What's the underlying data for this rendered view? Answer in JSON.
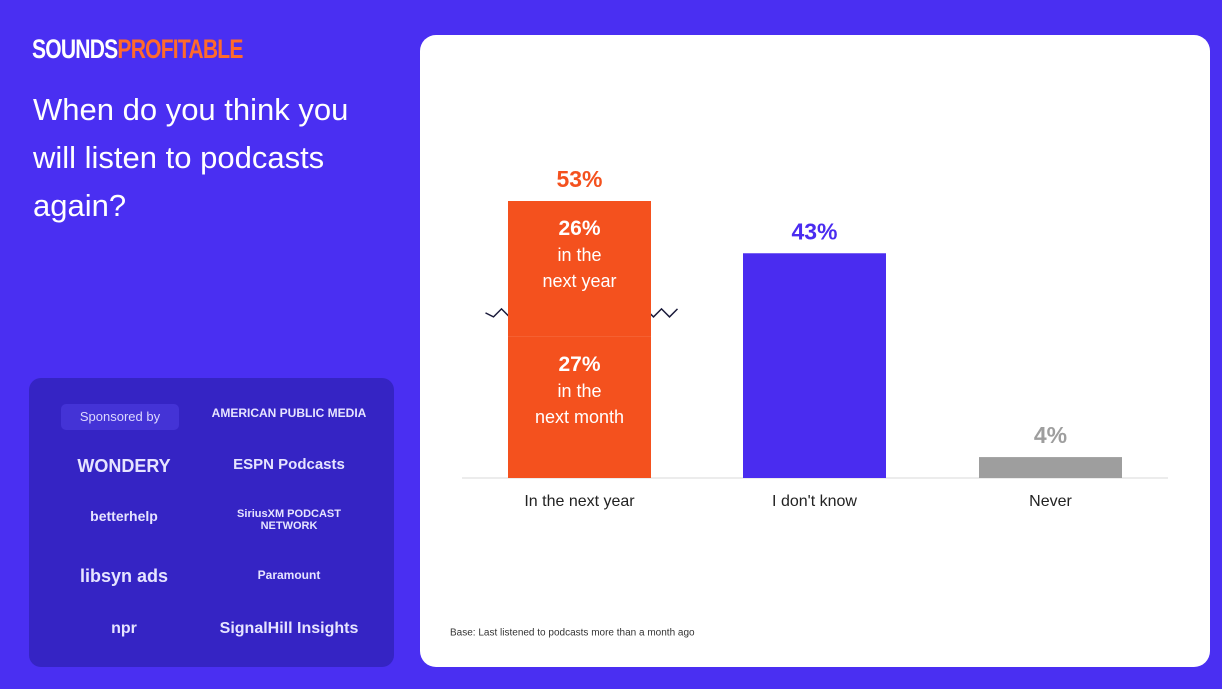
{
  "brand": {
    "part1": "SOUNDS",
    "part2": "PROFITABLE"
  },
  "question": "When do you think you will listen to podcasts again?",
  "sponsors": {
    "label": "Sponsored by",
    "logos": [
      "AMERICAN PUBLIC MEDIA",
      "WONDERY",
      "ESPN Podcasts",
      "betterhelp",
      "SiriusXM PODCAST NETWORK",
      "libsyn ads",
      "Paramount",
      "npr",
      "SignalHill Insights"
    ]
  },
  "chart_data": {
    "type": "bar",
    "categories": [
      "In the next year",
      "I don't know",
      "Never"
    ],
    "values": [
      53,
      43,
      4
    ],
    "value_labels": [
      "53%",
      "43%",
      "4%"
    ],
    "colors": [
      "#f4511e",
      "#4a2cf0",
      "#9e9e9e"
    ],
    "segments": [
      {
        "value": 27,
        "value_label": "27%",
        "label_lines": [
          "in the",
          "next month"
        ]
      },
      {
        "value": 26,
        "value_label": "26%",
        "label_lines": [
          "in the",
          "next year"
        ]
      }
    ],
    "note": "Base: Last listened to podcasts more than a month ago"
  }
}
